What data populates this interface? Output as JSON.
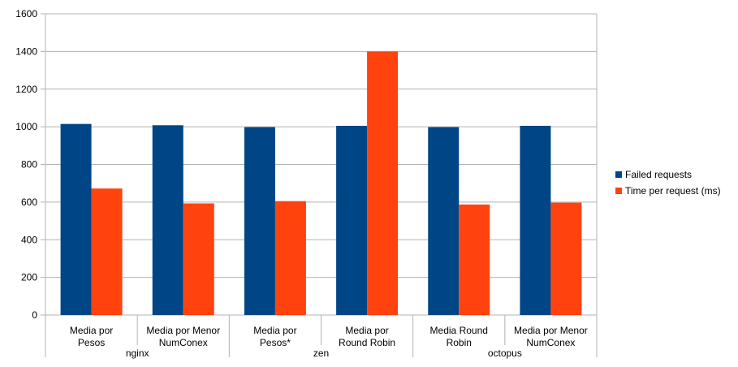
{
  "chart_data": {
    "type": "bar",
    "ylim": [
      0,
      1600
    ],
    "yticks": [
      0,
      200,
      400,
      600,
      800,
      1000,
      1200,
      1400,
      1600
    ],
    "grid": true,
    "legend_position": "right",
    "categories": [
      [
        "Media por",
        "Pesos"
      ],
      [
        "Media por Menor",
        "NumConex"
      ],
      [
        "Media por",
        "Pesos*"
      ],
      [
        "Media por",
        "Round Robin"
      ],
      [
        "Media Round",
        "Robin"
      ],
      [
        "Media por Menor",
        "NumConex"
      ]
    ],
    "groups": [
      {
        "label": "nginx",
        "span": 2
      },
      {
        "label": "zen",
        "span": 2
      },
      {
        "label": "octopus",
        "span": 2
      }
    ],
    "series": [
      {
        "name": "Failed requests",
        "color": "#004586",
        "values": [
          1015,
          1008,
          998,
          1005,
          998,
          1005
        ]
      },
      {
        "name": "Time per request (ms)",
        "color": "#ff420e",
        "values": [
          672,
          593,
          605,
          1400,
          587,
          597
        ]
      }
    ]
  }
}
